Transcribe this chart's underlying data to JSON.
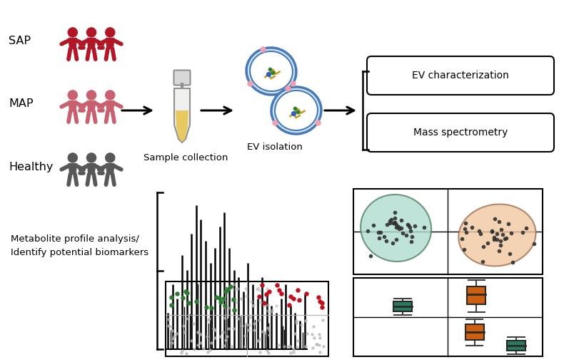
{
  "background_color": "#ffffff",
  "fig_width": 7.97,
  "fig_height": 5.08,
  "labels": {
    "SAP": "SAP",
    "MAP": "MAP",
    "Healthy": "Healthy",
    "sample_collection": "Sample collection",
    "ev_isolation": "EV isolation",
    "ev_characterization": "EV characterization",
    "mass_spectrometry": "Mass spectrometry",
    "metabolite_profile": "Metabolite profile analysis/\nIdentify potential biomarkers"
  },
  "colors": {
    "SAP_red": "#b01828",
    "MAP_pink": "#c86070",
    "Healthy_gray": "#585858",
    "teal_ellipse": "#b0ddd0",
    "peach_ellipse": "#f0c8a0",
    "teal_box": "#2a7a60",
    "orange_box": "#cc6010",
    "green_dots": "#2a7a30",
    "red_dots": "#c01020",
    "gray_dots": "#b8b8b8",
    "arrow_color": "#000000"
  }
}
